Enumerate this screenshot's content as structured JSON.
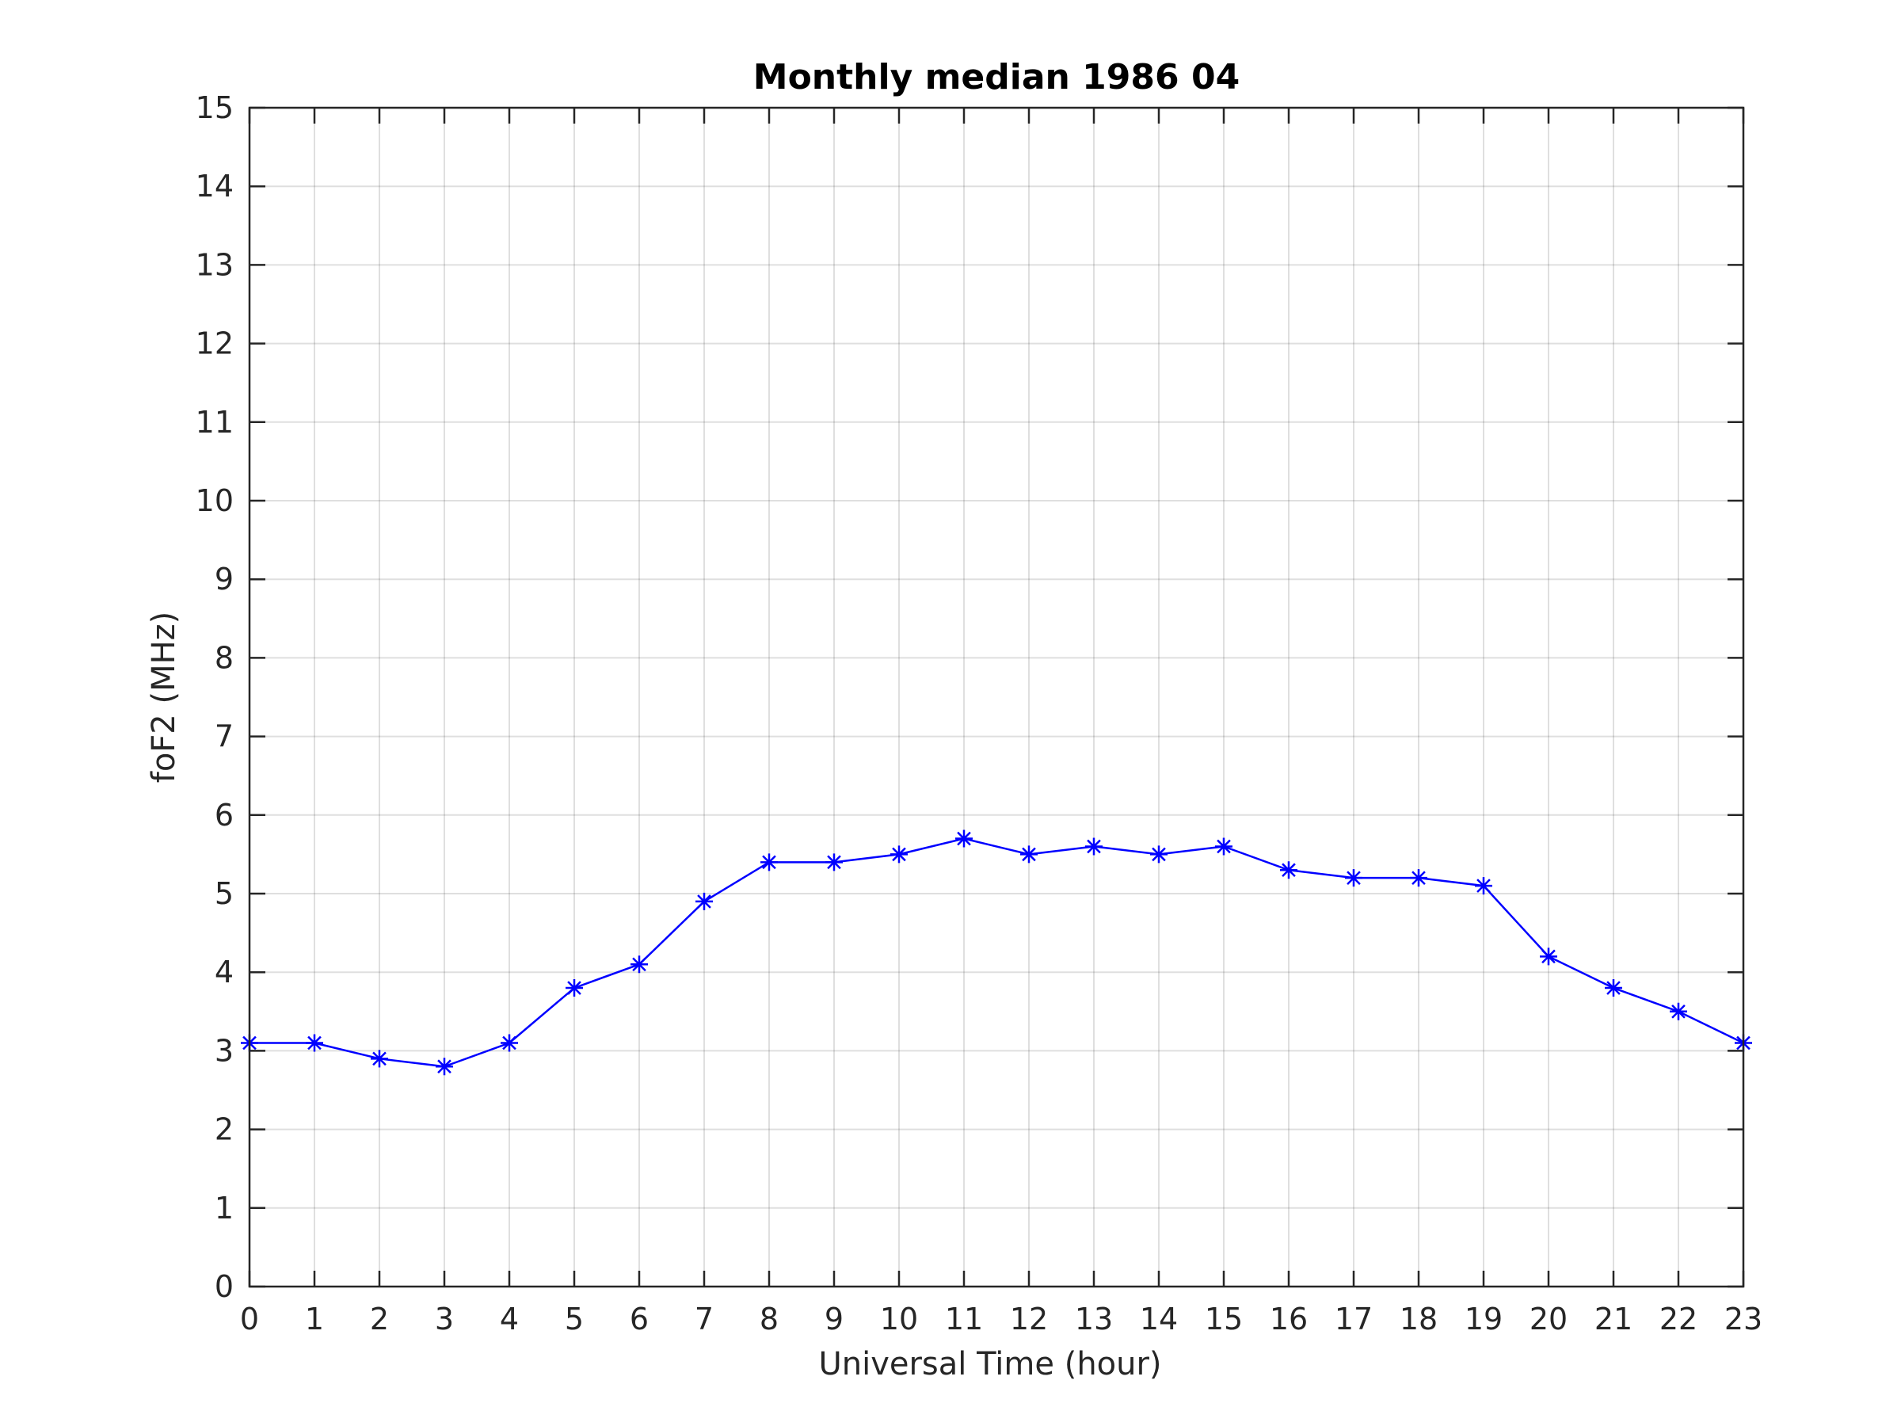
{
  "chart_data": {
    "type": "line",
    "title": "Monthly median 1986 04",
    "xlabel": "Universal Time (hour)",
    "ylabel": "foF2 (MHz)",
    "xlim": [
      0,
      23
    ],
    "ylim": [
      0,
      15
    ],
    "x_ticks": [
      0,
      1,
      2,
      3,
      4,
      5,
      6,
      7,
      8,
      9,
      10,
      11,
      12,
      13,
      14,
      15,
      16,
      17,
      18,
      19,
      20,
      21,
      22,
      23
    ],
    "y_ticks": [
      0,
      1,
      2,
      3,
      4,
      5,
      6,
      7,
      8,
      9,
      10,
      11,
      12,
      13,
      14,
      15
    ],
    "grid": true,
    "marker": "asterisk",
    "series": [
      {
        "color": "#0000ff",
        "x": [
          0,
          1,
          2,
          3,
          4,
          5,
          6,
          7,
          8,
          9,
          10,
          11,
          12,
          13,
          14,
          15,
          16,
          17,
          18,
          19,
          20,
          21,
          22,
          23
        ],
        "y": [
          3.1,
          3.1,
          2.9,
          2.8,
          3.1,
          3.8,
          4.1,
          4.9,
          5.4,
          5.4,
          5.5,
          5.7,
          5.5,
          5.6,
          5.5,
          5.6,
          5.3,
          5.2,
          5.2,
          5.1,
          4.2,
          3.8,
          3.5,
          3.1
        ]
      }
    ]
  }
}
